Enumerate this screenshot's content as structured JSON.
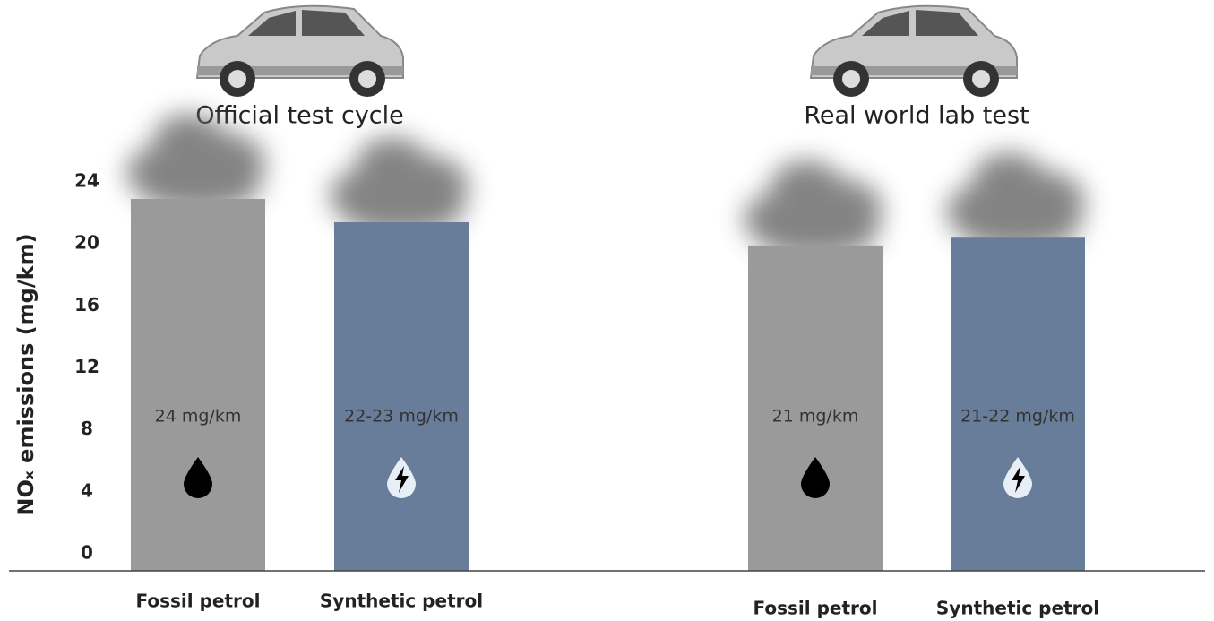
{
  "chart_data": {
    "type": "bar",
    "ylabel": "NOₓ emissions (mg/km)",
    "categories": [
      "Official test cycle",
      "Real world lab test"
    ],
    "series": [
      {
        "name": "Fossil petrol",
        "color": "#9a9a9a",
        "values": [
          24,
          21
        ],
        "value_labels": [
          "24 mg/km",
          "21 mg/km"
        ]
      },
      {
        "name": "Synthetic petrol",
        "color": "#677d99",
        "values": [
          22.5,
          21.5
        ],
        "value_labels": [
          "22-23 mg/km",
          "21-22 mg/km"
        ]
      }
    ],
    "ylim": [
      0,
      24
    ],
    "yticks": [
      0,
      4,
      8,
      12,
      16,
      20,
      24
    ]
  }
}
